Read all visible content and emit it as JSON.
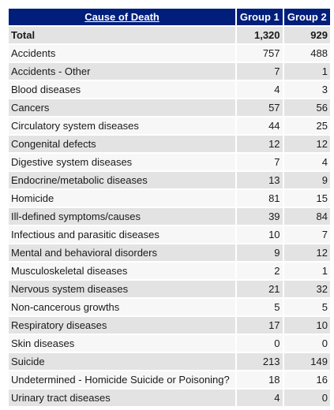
{
  "table": {
    "headers": [
      "Cause of Death",
      "Group 1",
      "Group 2"
    ],
    "rows": [
      {
        "cause": "Total",
        "g1": "1,320",
        "g2": "929",
        "bold": true
      },
      {
        "cause": "Accidents",
        "g1": "757",
        "g2": "488"
      },
      {
        "cause": "Accidents - Other",
        "g1": "7",
        "g2": "1"
      },
      {
        "cause": "Blood diseases",
        "g1": "4",
        "g2": "3"
      },
      {
        "cause": "Cancers",
        "g1": "57",
        "g2": "56"
      },
      {
        "cause": "Circulatory system diseases",
        "g1": "44",
        "g2": "25"
      },
      {
        "cause": "Congenital defects",
        "g1": "12",
        "g2": "12"
      },
      {
        "cause": "Digestive system diseases",
        "g1": "7",
        "g2": "4"
      },
      {
        "cause": "Endocrine/metabolic diseases",
        "g1": "13",
        "g2": "9"
      },
      {
        "cause": "Homicide",
        "g1": "81",
        "g2": "15"
      },
      {
        "cause": "Ill-defined symptoms/causes",
        "g1": "39",
        "g2": "84"
      },
      {
        "cause": "Infectious and parasitic diseases",
        "g1": "10",
        "g2": "7"
      },
      {
        "cause": "Mental and behavioral disorders",
        "g1": "9",
        "g2": "12"
      },
      {
        "cause": "Musculoskeletal diseases",
        "g1": "2",
        "g2": "1"
      },
      {
        "cause": "Nervous system diseases",
        "g1": "21",
        "g2": "32"
      },
      {
        "cause": "Non-cancerous growths",
        "g1": "5",
        "g2": "5"
      },
      {
        "cause": "Respiratory diseases",
        "g1": "17",
        "g2": "10"
      },
      {
        "cause": "Skin diseases",
        "g1": "0",
        "g2": "0"
      },
      {
        "cause": "Suicide",
        "g1": "213",
        "g2": "149"
      },
      {
        "cause": "Undetermined - Homicide Suicide or Poisoning?",
        "g1": "18",
        "g2": "16"
      },
      {
        "cause": "Urinary tract diseases",
        "g1": "4",
        "g2": "0"
      }
    ]
  },
  "colors": {
    "header_bg": "#001e7a",
    "row_odd": "#e3e3e3",
    "row_even": "#f7f7f7"
  }
}
